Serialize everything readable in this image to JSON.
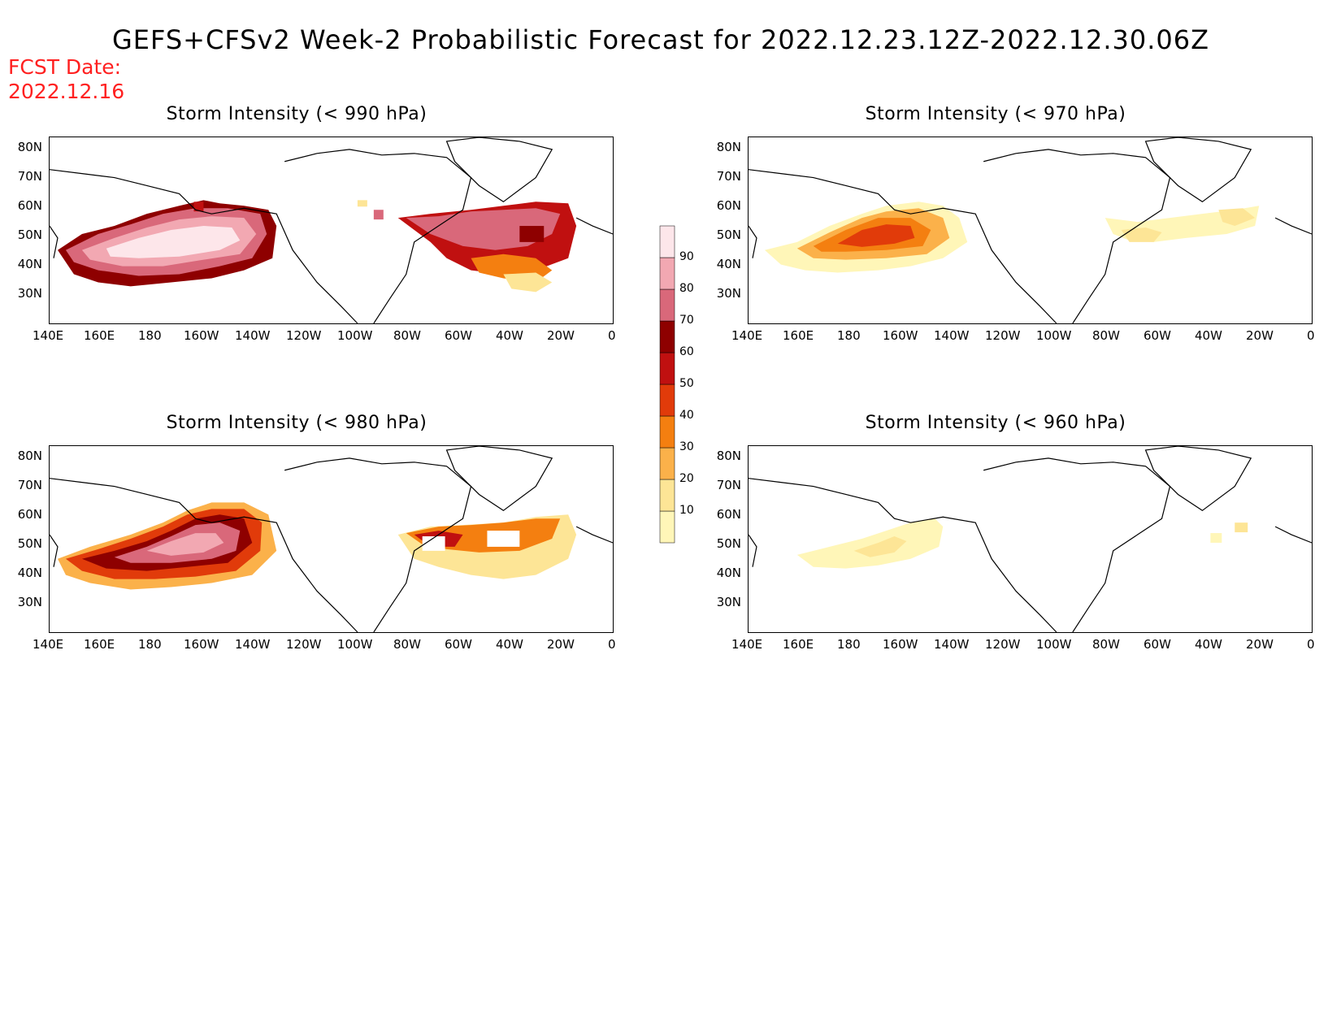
{
  "title": "GEFS+CFSv2 Week-2 Probabilistic Forecast for 2022.12.23.12Z-2022.12.30.06Z",
  "fcst_label": "FCST Date:",
  "fcst_date": "2022.12.16",
  "panels": [
    {
      "title": "Storm Intensity (< 990 hPa)",
      "key": "p990"
    },
    {
      "title": "Storm Intensity (< 970 hPa)",
      "key": "p970"
    },
    {
      "title": "Storm Intensity (< 980 hPa)",
      "key": "p980"
    },
    {
      "title": "Storm Intensity (< 960 hPa)",
      "key": "p960"
    }
  ],
  "lat_labels": [
    "80N",
    "70N",
    "60N",
    "50N",
    "40N",
    "30N"
  ],
  "lon_labels": [
    "140E",
    "160E",
    "180",
    "160W",
    "140W",
    "120W",
    "100W",
    "80W",
    "60W",
    "40W",
    "20W",
    "0"
  ],
  "colorbar": {
    "levels": [
      10,
      20,
      30,
      40,
      50,
      60,
      70,
      80,
      90
    ],
    "labels": [
      "90",
      "80",
      "70",
      "60",
      "50",
      "40",
      "30",
      "20",
      "10"
    ],
    "colors": [
      "#fff6b8",
      "#fde596",
      "#fbb14a",
      "#f47f10",
      "#e13b0a",
      "#c01010",
      "#8e0000",
      "#d9687a",
      "#f2a8b2",
      "#fde6ea"
    ]
  }
}
